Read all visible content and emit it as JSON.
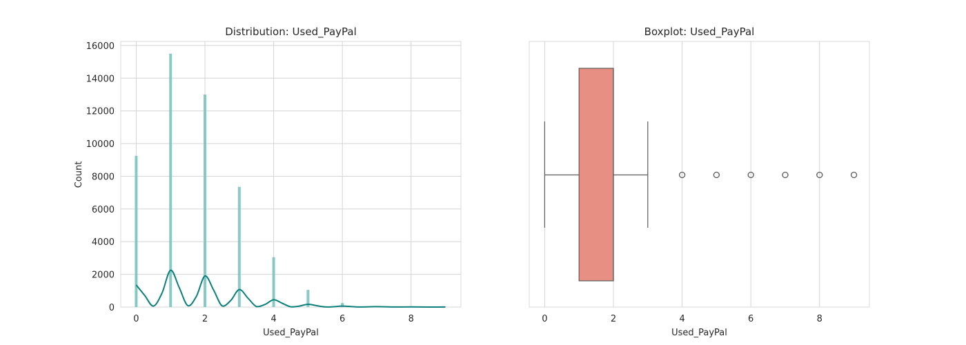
{
  "chart_data": [
    {
      "type": "histogram",
      "title": "Distribution: Used_PayPal",
      "xlabel": "Used_PayPal",
      "ylabel": "Count",
      "xlim": [
        -0.45,
        9.45
      ],
      "ylim": [
        0,
        16250
      ],
      "xticks": [
        0,
        2,
        4,
        6,
        8
      ],
      "yticks": [
        0,
        2000,
        4000,
        6000,
        8000,
        10000,
        12000,
        14000,
        16000
      ],
      "grid": true,
      "bar_color": "#7cc4bf",
      "kde_color": "#0a7f7a",
      "bins": [
        {
          "x": 0,
          "count": 9250
        },
        {
          "x": 1,
          "count": 15500
        },
        {
          "x": 2,
          "count": 13000
        },
        {
          "x": 3,
          "count": 7350
        },
        {
          "x": 4,
          "count": 3050
        },
        {
          "x": 5,
          "count": 1050
        },
        {
          "x": 6,
          "count": 250
        },
        {
          "x": 7,
          "count": 60
        },
        {
          "x": 8,
          "count": 20
        },
        {
          "x": 9,
          "count": 8
        }
      ],
      "kde": {
        "x": [
          0,
          0.25,
          0.5,
          0.75,
          1,
          1.25,
          1.5,
          1.75,
          2,
          2.25,
          2.5,
          2.75,
          3,
          3.25,
          3.5,
          3.75,
          4,
          4.25,
          4.5,
          4.75,
          5,
          5.25,
          5.5,
          5.75,
          6,
          6.5,
          7,
          7.5,
          8,
          8.5,
          9
        ],
        "y": [
          1350,
          700,
          60,
          850,
          2250,
          1200,
          90,
          650,
          1900,
          1050,
          70,
          400,
          1070,
          550,
          30,
          160,
          450,
          230,
          15,
          60,
          170,
          85,
          8,
          20,
          60,
          5,
          25,
          3,
          10,
          2,
          3
        ]
      }
    },
    {
      "type": "boxplot",
      "title": "Boxplot: Used_PayPal",
      "xlabel": "Used_PayPal",
      "xlim": [
        -0.45,
        9.45
      ],
      "xticks": [
        0,
        2,
        4,
        6,
        8
      ],
      "grid": true,
      "box_color": "#e88f84",
      "min": 0,
      "q1": 1,
      "median": 2,
      "q3": 2,
      "max": 3,
      "outliers": [
        4,
        5,
        6,
        7,
        8,
        9
      ]
    }
  ]
}
